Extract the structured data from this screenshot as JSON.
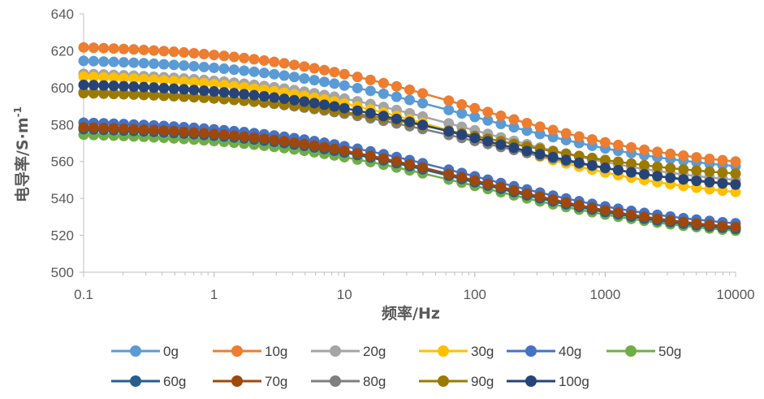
{
  "chart_data": {
    "type": "line",
    "title": "",
    "xlabel": "频率/Hz",
    "ylabel": "电导率/S·m",
    "ylabel_superscript": "-1",
    "xscale": "log",
    "xlim": [
      0.1,
      10000
    ],
    "ylim": [
      500,
      640
    ],
    "x_ticks": [
      "0.1",
      "1",
      "10",
      "100",
      "1000",
      "10000"
    ],
    "y_ticks": [
      "500",
      "520",
      "540",
      "560",
      "580",
      "600",
      "620",
      "640"
    ],
    "gridlines": false,
    "legend_position": "bottom",
    "series": [
      {
        "name": "0g",
        "color": "#5B9BD5",
        "f0": 614.5,
        "fend": 557.5
      },
      {
        "name": "10g",
        "color": "#ED7D31",
        "f0": 621.8,
        "fend": 560.0
      },
      {
        "name": "20g",
        "color": "#A5A5A5",
        "f0": 607.5,
        "fend": 550.0
      },
      {
        "name": "30g",
        "color": "#FFC000",
        "f0": 606.0,
        "fend": 543.5
      },
      {
        "name": "40g",
        "color": "#4472C4",
        "f0": 581.0,
        "fend": 526.5
      },
      {
        "name": "50g",
        "color": "#70AD47",
        "f0": 574.5,
        "fend": 522.5
      },
      {
        "name": "60g",
        "color": "#255E91",
        "f0": 577.5,
        "fend": 523.5
      },
      {
        "name": "70g",
        "color": "#9E480E",
        "f0": 578.5,
        "fend": 524.5
      },
      {
        "name": "80g",
        "color": "#7F7F7F",
        "f0": 597.5,
        "fend": 548.0
      },
      {
        "name": "90g",
        "color": "#9C7A00",
        "f0": 597.0,
        "fend": 553.5
      },
      {
        "name": "100g",
        "color": "#264478",
        "f0": 601.5,
        "fend": 547.5
      }
    ]
  }
}
